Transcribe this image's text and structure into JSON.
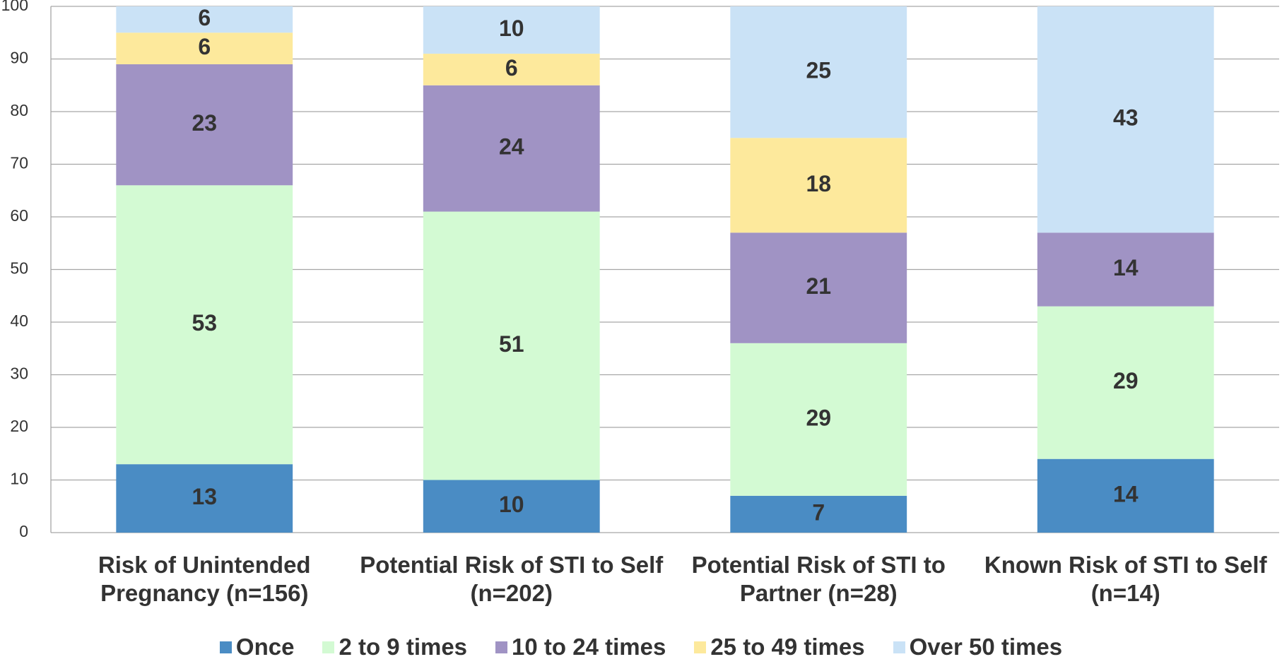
{
  "chart_data": {
    "type": "stacked_bar",
    "categories": [
      "Risk of Unintended Pregnancy (n=156)",
      "Potential Risk of STI to Self (n=202)",
      "Potential Risk of STI to Partner (n=28)",
      "Known Risk of STI to Self (n=14)"
    ],
    "series": [
      {
        "name": "Once",
        "color": "#4a8cc4",
        "values": [
          13,
          10,
          7,
          14
        ]
      },
      {
        "name": "2 to 9 times",
        "color": "#d3fad3",
        "values": [
          53,
          51,
          29,
          29
        ]
      },
      {
        "name": "10 to 24 times",
        "color": "#a093c4",
        "values": [
          23,
          24,
          21,
          14
        ]
      },
      {
        "name": "25 to 49 times",
        "color": "#fde99c",
        "values": [
          6,
          6,
          18,
          0
        ]
      },
      {
        "name": "Over 50 times",
        "color": "#cae2f6",
        "values": [
          6,
          10,
          25,
          43
        ]
      }
    ],
    "ylim": [
      0,
      100
    ],
    "yticks": [
      0,
      10,
      20,
      30,
      40,
      50,
      60,
      70,
      80,
      90,
      100
    ],
    "grid": true,
    "legend": "bottom"
  }
}
